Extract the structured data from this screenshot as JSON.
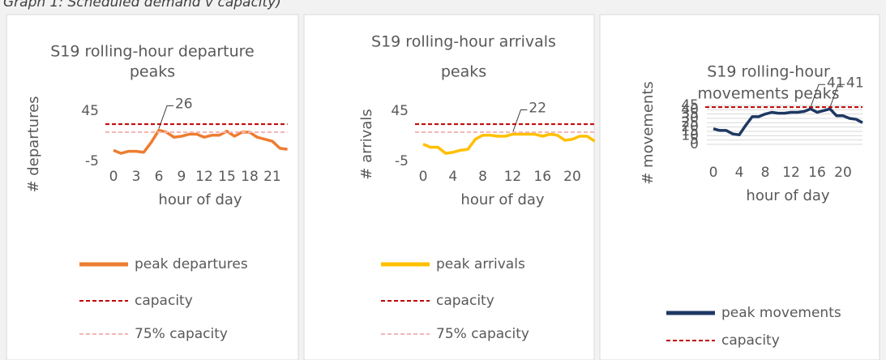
{
  "caption": "Graph 1: Scheduled demand v capacity)",
  "chart_data": [
    {
      "type": "line",
      "title": [
        "S19 rolling-hour departure",
        "peaks"
      ],
      "xlabel": "hour of day",
      "ylabel": "# departures",
      "x": [
        0,
        1,
        2,
        3,
        4,
        5,
        6,
        7,
        8,
        9,
        10,
        11,
        12,
        13,
        14,
        15,
        16,
        17,
        18,
        19,
        20,
        21,
        22,
        23
      ],
      "xlim": [
        0,
        23
      ],
      "xticks": [
        0,
        3,
        6,
        9,
        12,
        15,
        18,
        21
      ],
      "ylim": [
        -5,
        45
      ],
      "yticks": [
        -5,
        45
      ],
      "grid": false,
      "series": [
        {
          "name": "peak departures",
          "color": "#ed7d31",
          "values": [
            6,
            3,
            5,
            5,
            4,
            14,
            26,
            24,
            19,
            20,
            22,
            22,
            19,
            21,
            21,
            25,
            20,
            24,
            24,
            19,
            17,
            15,
            8,
            7
          ],
          "data_labels": [
            6
          ]
        }
      ],
      "reference_lines": [
        {
          "name": "capacity",
          "value": 32,
          "color": "#c00000"
        },
        {
          "name": "75% capacity",
          "value": 24,
          "color": "#f4b6b6"
        }
      ]
    },
    {
      "type": "line",
      "title": [
        "S19 rolling-hour arrivals",
        "peaks"
      ],
      "xlabel": "hour of day",
      "ylabel": "# arrivals",
      "x": [
        0,
        1,
        2,
        3,
        4,
        5,
        6,
        7,
        8,
        9,
        10,
        11,
        12,
        13,
        14,
        15,
        16,
        17,
        18,
        19,
        20,
        21,
        22,
        23
      ],
      "xlim": [
        0,
        23
      ],
      "xticks": [
        0,
        4,
        8,
        12,
        16,
        20
      ],
      "ylim": [
        -5,
        45
      ],
      "yticks": [
        -5,
        45
      ],
      "grid": false,
      "series": [
        {
          "name": "peak arrivals",
          "color": "#ffc000",
          "values": [
            12,
            9,
            9,
            3,
            4,
            6,
            7,
            17,
            21,
            21,
            20,
            20,
            22,
            22,
            22,
            22,
            20,
            22,
            21,
            16,
            17,
            20,
            20,
            15
          ],
          "data_labels": [
            12
          ]
        }
      ],
      "reference_lines": [
        {
          "name": "capacity",
          "value": 32,
          "color": "#c00000"
        },
        {
          "name": "75% capacity",
          "value": 24,
          "color": "#f4b6b6"
        }
      ]
    },
    {
      "type": "line",
      "title": [
        "S19 rolling-hour",
        "movements peaks"
      ],
      "xlabel": "hour of day",
      "ylabel": "# movements",
      "x": [
        0,
        1,
        2,
        3,
        4,
        5,
        6,
        7,
        8,
        9,
        10,
        11,
        12,
        13,
        14,
        15,
        16,
        17,
        18,
        19,
        20,
        21,
        22,
        23
      ],
      "xlim": [
        0,
        23
      ],
      "xticks": [
        0,
        4,
        8,
        12,
        16,
        20
      ],
      "ylim": [
        0,
        45
      ],
      "yticks": [
        0,
        5,
        10,
        15,
        20,
        25,
        30,
        35,
        40,
        45
      ],
      "grid": true,
      "series": [
        {
          "name": "peak movements",
          "color": "#1f3864",
          "values": [
            18,
            16,
            16,
            12,
            11,
            22,
            32,
            32,
            35,
            37,
            36,
            36,
            37,
            37,
            38,
            41,
            37,
            39,
            41,
            33,
            33,
            30,
            29,
            25
          ],
          "data_labels": [
            15,
            18
          ]
        }
      ],
      "reference_lines": [
        {
          "name": "capacity",
          "value": 43,
          "color": "#c00000"
        }
      ]
    }
  ]
}
